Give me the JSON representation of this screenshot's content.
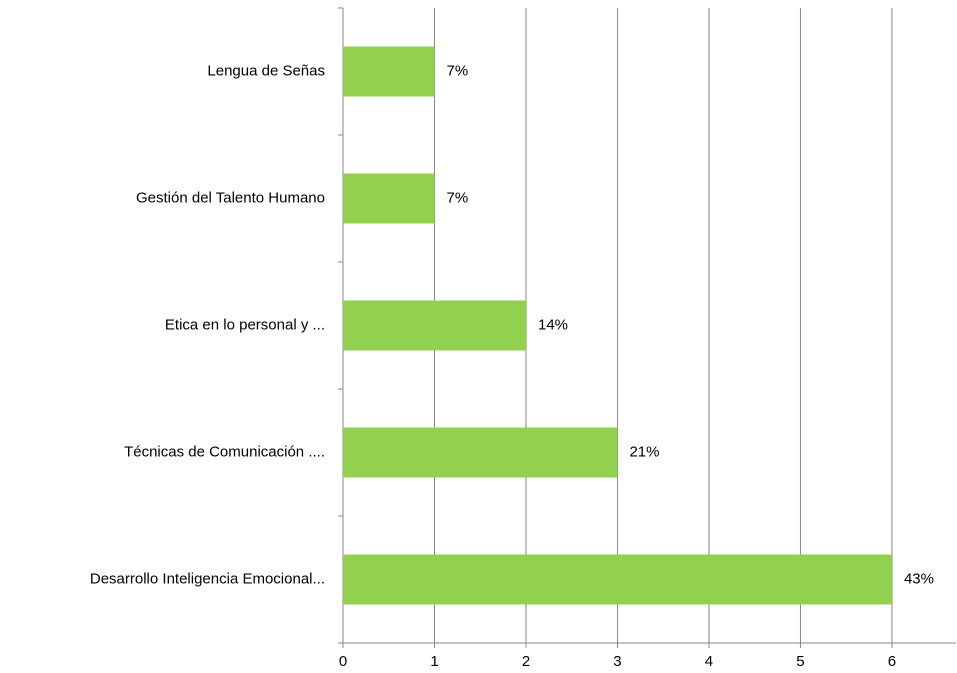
{
  "chart_data": {
    "type": "barh",
    "categories": [
      "Lengua de Señas",
      "Gestión del Talento Humano",
      "Etica en lo personal  y ...",
      "Técnicas de Comunicación  ....",
      "Desarrollo Inteligencia  Emocional..."
    ],
    "values": [
      1,
      1,
      2,
      3,
      6
    ],
    "data_labels": [
      "7%",
      "7%",
      "14%",
      "21%",
      "43%"
    ],
    "color": "#92d050",
    "xlim": [
      0,
      6.7
    ],
    "xticks": [
      0,
      1,
      2,
      3,
      4,
      5,
      6
    ],
    "grid": true
  }
}
